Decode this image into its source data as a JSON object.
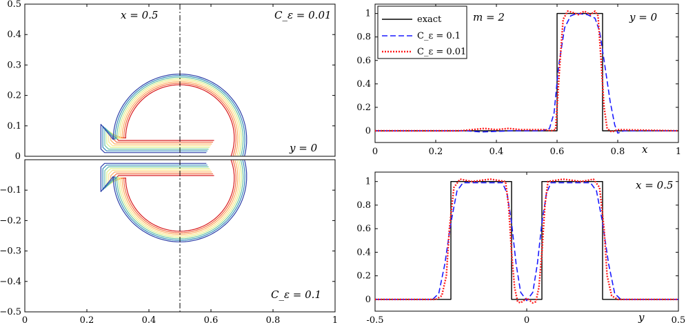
{
  "chart_data": [
    {
      "id": "contour_top",
      "type": "contour",
      "annotations": [
        "x = 0.5",
        "C_ε = 0.01",
        "y = 0"
      ],
      "xlim": [
        0,
        1
      ],
      "ylim": [
        0,
        0.5
      ],
      "yticks": [
        0.1,
        0.2,
        0.3,
        0.4,
        0.5
      ],
      "ytick_labels": [
        "0.1",
        "0.2",
        "0.3",
        "0.4",
        "0.5"
      ],
      "zero_label": "0",
      "dashline_x": 0.5,
      "level_colors": [
        "#d7191c",
        "#f46d43",
        "#fdae61",
        "#fee08b",
        "#d9ef8b",
        "#66c2a5",
        "#3288bd",
        "#2b3ea8"
      ]
    },
    {
      "id": "contour_bottom",
      "type": "contour",
      "annotations": [
        "C_ε = 0.1"
      ],
      "xlim": [
        0,
        1
      ],
      "ylim": [
        -0.5,
        0
      ],
      "xticks": [
        0,
        0.2,
        0.4,
        0.6,
        0.8,
        1
      ],
      "xtick_labels": [
        "0",
        "0.2",
        "0.4",
        "0.6",
        "0.8",
        "1"
      ],
      "yticks": [
        -0.1,
        -0.2,
        -0.3,
        -0.4,
        -0.5
      ],
      "ytick_labels": [
        "−0.1",
        "−0.2",
        "−0.3",
        "−0.4",
        "−0.5"
      ],
      "dashline_x": 0.5,
      "level_colors": [
        "#d7191c",
        "#f46d43",
        "#fdae61",
        "#fee08b",
        "#d9ef8b",
        "#66c2a5",
        "#3288bd",
        "#2b3ea8"
      ]
    },
    {
      "id": "line_y0",
      "type": "line",
      "annotations": [
        "m = 2",
        "y = 0"
      ],
      "xlabel": "x",
      "xlim": [
        0,
        1
      ],
      "ylim": [
        -0.1,
        1.08
      ],
      "xticks": [
        0,
        0.2,
        0.4,
        0.6,
        0.8,
        1
      ],
      "xtick_labels": [
        "0",
        "0.2",
        "0.4",
        "0.6",
        "0.8",
        "1"
      ],
      "yticks": [
        0,
        0.2,
        0.4,
        0.6,
        0.8,
        1
      ],
      "ytick_labels": [
        "0",
        "0.2",
        "0.4",
        "0.6",
        "0.8",
        "1"
      ],
      "legend": [
        "exact",
        "C_ε = 0.1",
        "C_ε = 0.01"
      ],
      "series": [
        {
          "name": "exact",
          "color": "#000000",
          "dash": "",
          "x": [
            0,
            0.6,
            0.6,
            0.75,
            0.75,
            1
          ],
          "y": [
            0,
            0,
            1,
            1,
            0,
            0
          ]
        },
        {
          "name": "C_ε = 0.1",
          "color": "#1a1aff",
          "dash": "8 4",
          "x": [
            0,
            0.3,
            0.35,
            0.45,
            0.5,
            0.55,
            0.575,
            0.59,
            0.605,
            0.625,
            0.645,
            0.665,
            0.7,
            0.725,
            0.74,
            0.755,
            0.775,
            0.79,
            0.8,
            0.82,
            1
          ],
          "y": [
            0,
            0,
            -0.01,
            0,
            0,
            0,
            0.02,
            0.15,
            0.55,
            0.88,
            0.98,
            1.0,
            0.99,
            0.96,
            0.85,
            0.6,
            0.25,
            0.05,
            -0.02,
            0,
            0
          ]
        },
        {
          "name": "C_ε = 0.01",
          "color": "#ff1a1a",
          "dash": "2 2",
          "x": [
            0,
            0.28,
            0.32,
            0.36,
            0.4,
            0.44,
            0.48,
            0.52,
            0.56,
            0.58,
            0.595,
            0.61,
            0.62,
            0.635,
            0.65,
            0.67,
            0.69,
            0.71,
            0.725,
            0.735,
            0.745,
            0.755,
            0.765,
            0.78,
            0.8,
            1
          ],
          "y": [
            0,
            0,
            0.01,
            0.02,
            0.01,
            0.02,
            0.01,
            0.01,
            0.01,
            0.0,
            0.01,
            0.6,
            0.95,
            1.02,
            1.01,
            0.99,
            1.02,
            0.99,
            1.02,
            0.98,
            0.6,
            0.2,
            0.02,
            -0.01,
            0.01,
            0
          ]
        }
      ]
    },
    {
      "id": "line_x05",
      "type": "line",
      "annotations": [
        "x = 0.5"
      ],
      "xlabel": "y",
      "xlim": [
        -0.5,
        0.5
      ],
      "ylim": [
        -0.1,
        1.08
      ],
      "xticks": [
        -0.5,
        0,
        0.5
      ],
      "xtick_labels": [
        "-0.5",
        "0",
        "0.5"
      ],
      "yticks": [
        0,
        0.2,
        0.4,
        0.6,
        0.8,
        1
      ],
      "ytick_labels": [
        "0",
        "0.2",
        "0.4",
        "0.6",
        "0.8",
        "1"
      ],
      "series": [
        {
          "name": "exact",
          "color": "#000000",
          "dash": "",
          "x": [
            -0.5,
            -0.25,
            -0.25,
            -0.05,
            -0.05,
            0.05,
            0.05,
            0.25,
            0.25,
            0.5
          ],
          "y": [
            0,
            0,
            1,
            1,
            0,
            0,
            1,
            1,
            0,
            0
          ]
        },
        {
          "name": "C_ε = 0.1",
          "color": "#1a1aff",
          "dash": "8 4",
          "x": [
            -0.5,
            -0.31,
            -0.29,
            -0.27,
            -0.25,
            -0.23,
            -0.21,
            -0.08,
            -0.065,
            -0.05,
            -0.035,
            -0.02,
            0,
            0.02,
            0.035,
            0.05,
            0.065,
            0.08,
            0.21,
            0.23,
            0.25,
            0.27,
            0.29,
            0.31,
            0.5
          ],
          "y": [
            0,
            0,
            0.05,
            0.3,
            0.65,
            0.92,
            0.99,
            0.99,
            0.9,
            0.65,
            0.3,
            0.06,
            -0.01,
            0.06,
            0.3,
            0.65,
            0.9,
            0.99,
            0.99,
            0.92,
            0.65,
            0.3,
            0.05,
            0,
            0
          ]
        },
        {
          "name": "C_ε = 0.01",
          "color": "#ff1a1a",
          "dash": "2 2",
          "x": [
            -0.5,
            -0.3,
            -0.28,
            -0.265,
            -0.255,
            -0.24,
            -0.22,
            -0.18,
            -0.12,
            -0.07,
            -0.06,
            -0.05,
            -0.04,
            -0.03,
            -0.02,
            0,
            0.02,
            0.03,
            0.04,
            0.05,
            0.06,
            0.07,
            0.12,
            0.18,
            0.22,
            0.24,
            0.255,
            0.265,
            0.28,
            0.3,
            0.5
          ],
          "y": [
            0,
            0,
            0.03,
            0.2,
            0.6,
            0.95,
            1.02,
            1.0,
            1.02,
            1.0,
            0.8,
            0.4,
            0.1,
            -0.02,
            -0.03,
            0.01,
            -0.03,
            -0.02,
            0.1,
            0.4,
            0.8,
            1.0,
            1.02,
            1.0,
            1.02,
            0.95,
            0.6,
            0.2,
            0.03,
            0,
            0
          ]
        }
      ]
    }
  ]
}
